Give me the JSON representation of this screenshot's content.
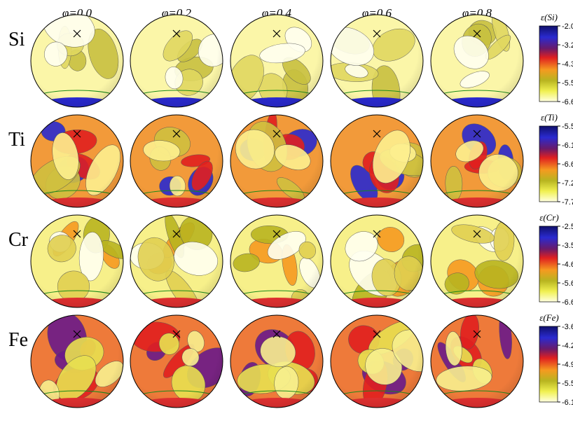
{
  "columns": [
    "φ=0.0",
    "φ=0.2",
    "φ=0.4",
    "φ=0.6",
    "φ=0.8"
  ],
  "rows": [
    {
      "label": "Si",
      "colorbar": {
        "title": "ε(Si)",
        "ticks": [
          "-2.0",
          "-3.2",
          "-4.3",
          "-5.5",
          "-6.6"
        ]
      }
    },
    {
      "label": "Ti",
      "colorbar": {
        "title": "ε(Ti)",
        "ticks": [
          "-5.5",
          "-6.1",
          "-6.6",
          "-7.2",
          "-7.7"
        ]
      }
    },
    {
      "label": "Cr",
      "colorbar": {
        "title": "ε(Cr)",
        "ticks": [
          "-2.5",
          "-3.5",
          "-4.6",
          "-5.6",
          "-6.6"
        ]
      }
    },
    {
      "label": "Fe",
      "colorbar": {
        "title": "ε(Fe)",
        "ticks": [
          "-3.6",
          "-4.2",
          "-4.9",
          "-5.5",
          "-6.1"
        ]
      }
    }
  ]
}
